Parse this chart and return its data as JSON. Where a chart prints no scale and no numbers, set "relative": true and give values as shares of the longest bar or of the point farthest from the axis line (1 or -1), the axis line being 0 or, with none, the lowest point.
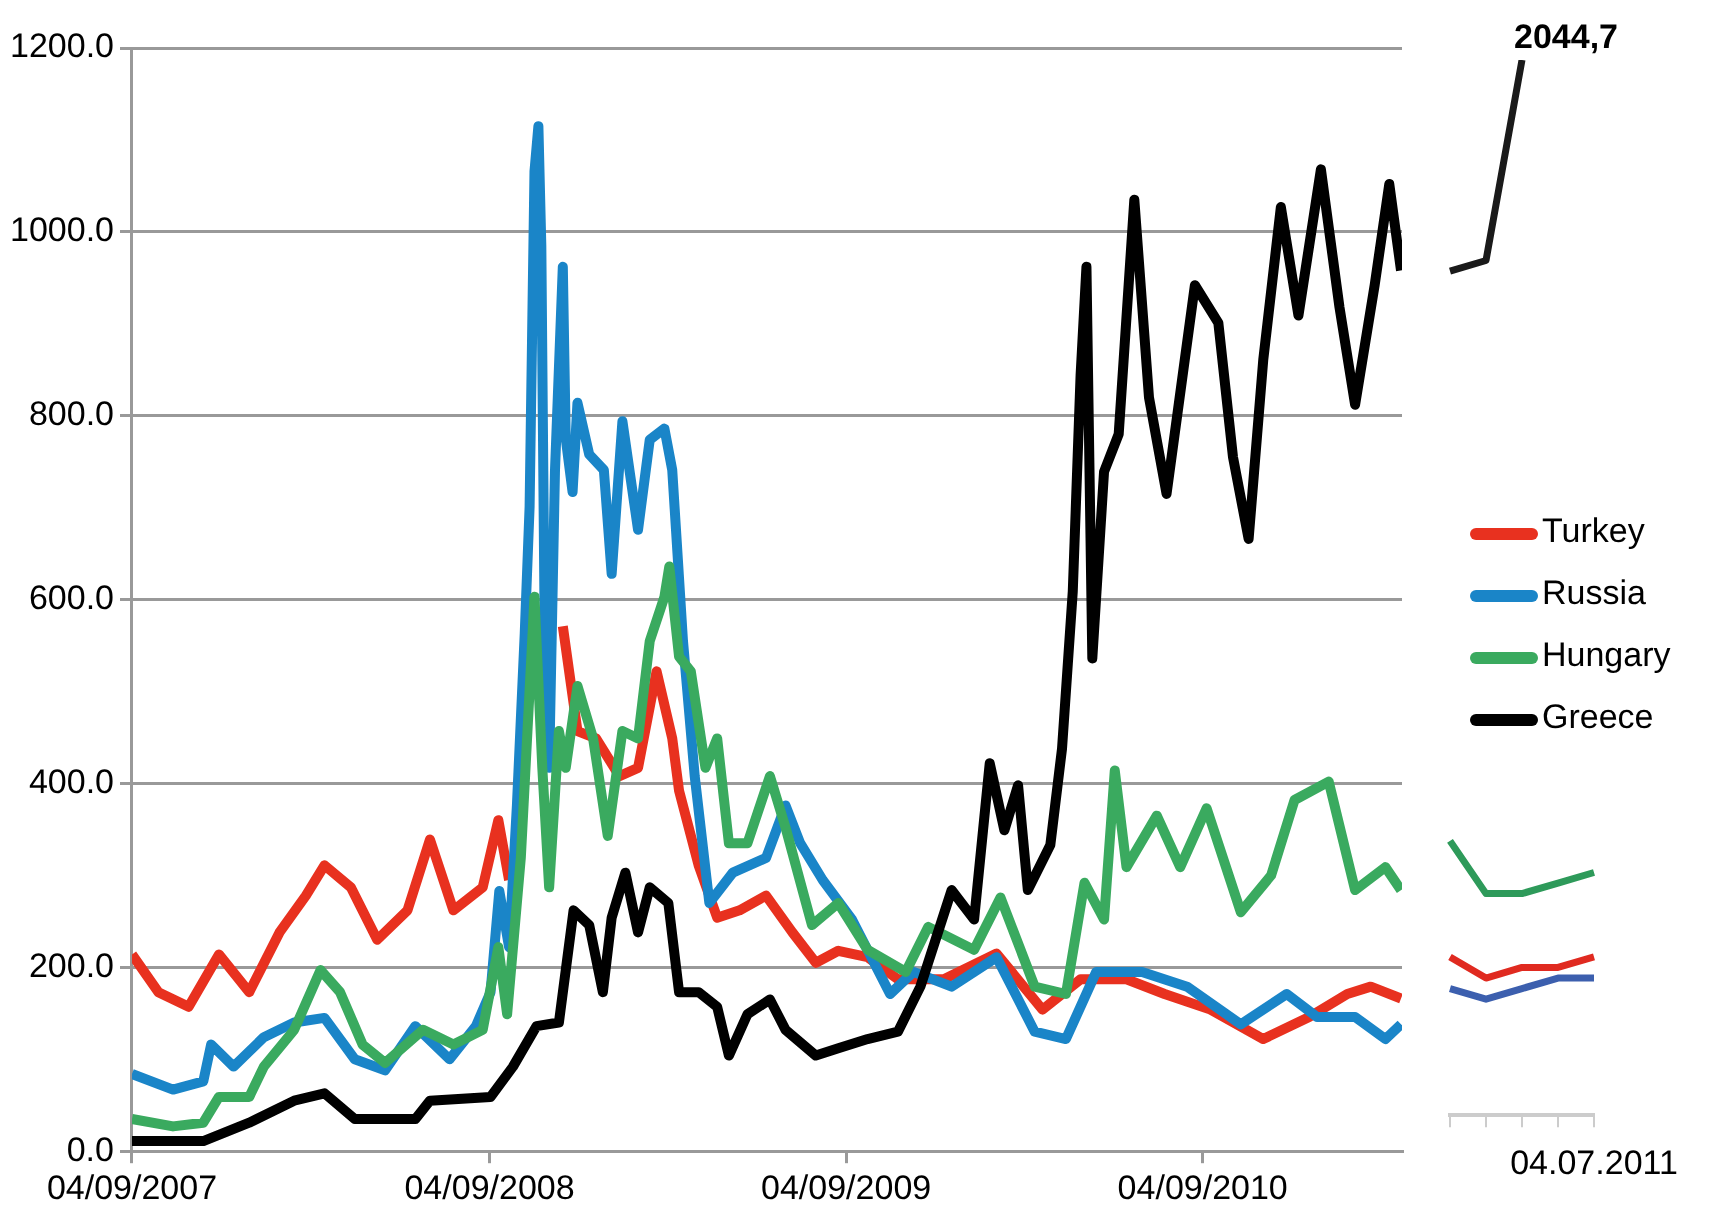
{
  "chart_data": [
    {
      "type": "line",
      "xlim": [
        "2007-09-04",
        "2011-03-27"
      ],
      "xticks": [
        {
          "value": "2007-09-04",
          "label": "04/09/2007"
        },
        {
          "value": "2008-09-04",
          "label": "04/09/2008"
        },
        {
          "value": "2009-09-04",
          "label": "04/09/2009"
        },
        {
          "value": "2010-09-04",
          "label": "04/09/2010"
        }
      ],
      "ylim": [
        0,
        1200
      ],
      "yticks": [
        {
          "value": 0,
          "label": "0.0"
        },
        {
          "value": 200,
          "label": "200.0"
        },
        {
          "value": 400,
          "label": "400.0"
        },
        {
          "value": 600,
          "label": "600.0"
        },
        {
          "value": 800,
          "label": "800.0"
        },
        {
          "value": 1000,
          "label": "1000.0"
        },
        {
          "value": 1200,
          "label": "1200.0"
        }
      ],
      "grid": "y",
      "legend": "right",
      "marker": "none",
      "line_style": "solid",
      "series": [
        {
          "name": "Turkey",
          "color": "#e8311f",
          "x": [
            "2007-09-04",
            "2007-10-01",
            "2007-11-01",
            "2007-12-02",
            "2008-01-02",
            "2008-02-02",
            "2008-02-29",
            "2008-03-19",
            "2008-04-15",
            "2008-05-12",
            "2008-06-12",
            "2008-07-05",
            "2008-07-29",
            "2008-08-28",
            "2008-09-13",
            "2008-09-24",
            "2008-10-10",
            "2008-10-22",
            "2008-11-02",
            "2008-11-18",
            "2008-12-03",
            "2008-12-22",
            "2009-01-15",
            "2009-02-03",
            "2009-02-22",
            "2009-03-10",
            "2009-03-17",
            "2009-04-06",
            "2009-04-25",
            "2009-05-18",
            "2009-06-14",
            "2009-07-11",
            "2009-08-04",
            "2009-08-27",
            "2009-09-26",
            "2009-10-27",
            "2009-12-13",
            "2010-02-05",
            "2010-03-24",
            "2010-05-02",
            "2010-06-18",
            "2010-07-27",
            "2010-09-12",
            "2010-11-05",
            "2010-12-22",
            "2011-01-30",
            "2011-02-23",
            "2011-03-26"
          ],
          "values": [
            214,
            173,
            157,
            214,
            173,
            238,
            278,
            311,
            287,
            230,
            262,
            339,
            262,
            287,
            360,
            295,
            null,
            null,
            null,
            571,
            457,
            449,
            408,
            417,
            522,
            449,
            392,
            311,
            254,
            262,
            278,
            238,
            205,
            218,
            211,
            187,
            187,
            215,
            154,
            187,
            187,
            171,
            154,
            122,
            146,
            171,
            179,
            166
          ]
        },
        {
          "name": "Russia",
          "color": "#1a85c8",
          "x": [
            "2007-09-04",
            "2007-10-16",
            "2007-11-16",
            "2007-11-24",
            "2007-12-17",
            "2008-01-17",
            "2008-02-17",
            "2008-03-19",
            "2008-04-19",
            "2008-05-20",
            "2008-06-20",
            "2008-07-25",
            "2008-08-21",
            "2008-09-05",
            "2008-09-14",
            "2008-09-24",
            "2008-10-02",
            "2008-10-10",
            "2008-10-15",
            "2008-10-20",
            "2008-10-24",
            "2008-10-27",
            "2008-10-31",
            "2008-11-04",
            "2008-11-10",
            "2008-11-18",
            "2008-11-21",
            "2008-11-28",
            "2008-12-03",
            "2008-12-15",
            "2008-12-30",
            "2009-01-07",
            "2009-01-18",
            "2009-02-03",
            "2009-02-15",
            "2009-03-02",
            "2009-03-10",
            "2009-03-21",
            "2009-04-02",
            "2009-04-17",
            "2009-05-11",
            "2009-06-14",
            "2009-07-04",
            "2009-07-19",
            "2009-08-11",
            "2009-09-10",
            "2009-10-19",
            "2009-11-12",
            "2009-12-21",
            "2010-02-05",
            "2010-03-16",
            "2010-04-17",
            "2010-05-18",
            "2010-07-04",
            "2010-08-19",
            "2010-10-13",
            "2010-11-29",
            "2010-12-30",
            "2011-02-07",
            "2011-03-10",
            "2011-03-26"
          ],
          "values": [
            84,
            67,
            76,
            116,
            92,
            124,
            140,
            145,
            100,
            88,
            136,
            100,
            136,
            173,
            283,
            222,
            376,
            563,
            701,
            1066,
            1115,
            985,
            498,
            417,
            741,
            962,
            775,
            717,
            814,
            758,
            741,
            628,
            794,
            676,
            774,
            786,
            741,
            555,
            408,
            270,
            303,
            319,
            376,
            335,
            295,
            252,
            171,
            195,
            179,
            211,
            130,
            122,
            195,
            195,
            179,
            138,
            171,
            146,
            146,
            122,
            138
          ]
        },
        {
          "name": "Hungary",
          "color": "#3aaa5f",
          "x": [
            "2007-09-04",
            "2007-10-16",
            "2007-11-16",
            "2007-12-02",
            "2008-01-02",
            "2008-01-17",
            "2008-02-17",
            "2008-03-15",
            "2008-04-04",
            "2008-04-27",
            "2008-05-20",
            "2008-06-28",
            "2008-07-29",
            "2008-08-28",
            "2008-09-13",
            "2008-09-22",
            "2008-10-06",
            "2008-10-20",
            "2008-10-28",
            "2008-11-04",
            "2008-11-14",
            "2008-11-21",
            "2008-12-03",
            "2008-12-19",
            "2009-01-03",
            "2009-01-18",
            "2009-02-03",
            "2009-02-15",
            "2009-03-02",
            "2009-03-07",
            "2009-03-17",
            "2009-03-29",
            "2009-04-13",
            "2009-04-25",
            "2009-05-07",
            "2009-05-26",
            "2009-06-18",
            "2009-07-04",
            "2009-07-31",
            "2009-08-27",
            "2009-09-26",
            "2009-11-04",
            "2009-11-27",
            "2010-01-13",
            "2010-02-09",
            "2010-03-16",
            "2010-04-17",
            "2010-05-06",
            "2010-05-26",
            "2010-06-06",
            "2010-06-18",
            "2010-07-19",
            "2010-08-12",
            "2010-09-08",
            "2010-10-13",
            "2010-11-13",
            "2010-12-07",
            "2011-01-11",
            "2011-02-07",
            "2011-03-10",
            "2011-03-26"
          ],
          "values": [
            35,
            27,
            31,
            59,
            59,
            92,
            132,
            197,
            173,
            116,
            96,
            132,
            116,
            132,
            222,
            149,
            319,
            603,
            417,
            287,
            457,
            417,
            506,
            449,
            343,
            457,
            449,
            555,
            603,
            636,
            538,
            522,
            417,
            449,
            335,
            335,
            408,
            352,
            246,
            270,
            219,
            195,
            244,
            219,
            276,
            179,
            171,
            292,
            252,
            414,
            309,
            365,
            309,
            373,
            260,
            300,
            382,
            402,
            284,
            309,
            284
          ]
        },
        {
          "name": "Greece",
          "color": "#000000",
          "x": [
            "2007-09-04",
            "2007-11-16",
            "2008-01-02",
            "2008-02-17",
            "2008-03-19",
            "2008-04-19",
            "2008-06-20",
            "2008-07-05",
            "2008-09-05",
            "2008-09-28",
            "2008-10-22",
            "2008-11-14",
            "2008-11-29",
            "2008-12-15",
            "2008-12-29",
            "2009-01-07",
            "2009-01-21",
            "2009-02-03",
            "2009-02-15",
            "2009-03-06",
            "2009-03-17",
            "2009-04-06",
            "2009-04-25",
            "2009-05-07",
            "2009-05-26",
            "2009-06-18",
            "2009-07-04",
            "2009-08-04",
            "2009-08-27",
            "2009-09-26",
            "2009-10-27",
            "2009-11-19",
            "2009-12-21",
            "2010-01-13",
            "2010-01-29",
            "2010-02-13",
            "2010-02-27",
            "2010-03-09",
            "2010-04-01",
            "2010-04-13",
            "2010-04-24",
            "2010-05-02",
            "2010-05-08",
            "2010-05-14",
            "2010-05-26",
            "2010-06-10",
            "2010-06-26",
            "2010-07-11",
            "2010-07-29",
            "2010-08-27",
            "2010-09-20",
            "2010-10-05",
            "2010-10-21",
            "2010-11-05",
            "2010-11-23",
            "2010-12-11",
            "2011-01-03",
            "2011-01-22",
            "2011-02-07",
            "2011-02-27",
            "2011-03-14",
            "2011-03-26"
          ],
          "values": [
            11,
            11,
            31,
            55,
            63,
            35,
            35,
            55,
            59,
            92,
            136,
            140,
            262,
            246,
            173,
            254,
            303,
            238,
            287,
            270,
            173,
            173,
            157,
            104,
            149,
            165,
            132,
            104,
            112,
            122,
            130,
            179,
            284,
            252,
            422,
            349,
            398,
            284,
            333,
            438,
            609,
            844,
            962,
            536,
            739,
            780,
            1035,
            820,
            715,
            942,
            901,
            755,
            666,
            861,
            1027,
            909,
            1068,
            918,
            812,
            942,
            1052,
            958
          ]
        }
      ]
    },
    {
      "type": "line",
      "relative": true,
      "categories": [
        null,
        null,
        null,
        null,
        null
      ],
      "marker": "none",
      "annotations": [
        "2044,7",
        "04.07.2011"
      ],
      "series": [
        {
          "color": "#e02a20",
          "values": [
            0.15,
            0.13,
            0.14,
            0.14,
            0.15
          ]
        },
        {
          "color": "#3c5fae",
          "values": [
            0.12,
            0.11,
            0.12,
            0.13,
            0.13
          ]
        },
        {
          "color": "#2e9a5a",
          "values": [
            0.26,
            0.21,
            0.21,
            0.22,
            0.23
          ]
        },
        {
          "color": "#1a1a1a",
          "values": [
            0.8,
            0.81,
            1.0,
            null,
            null
          ]
        }
      ]
    }
  ]
}
